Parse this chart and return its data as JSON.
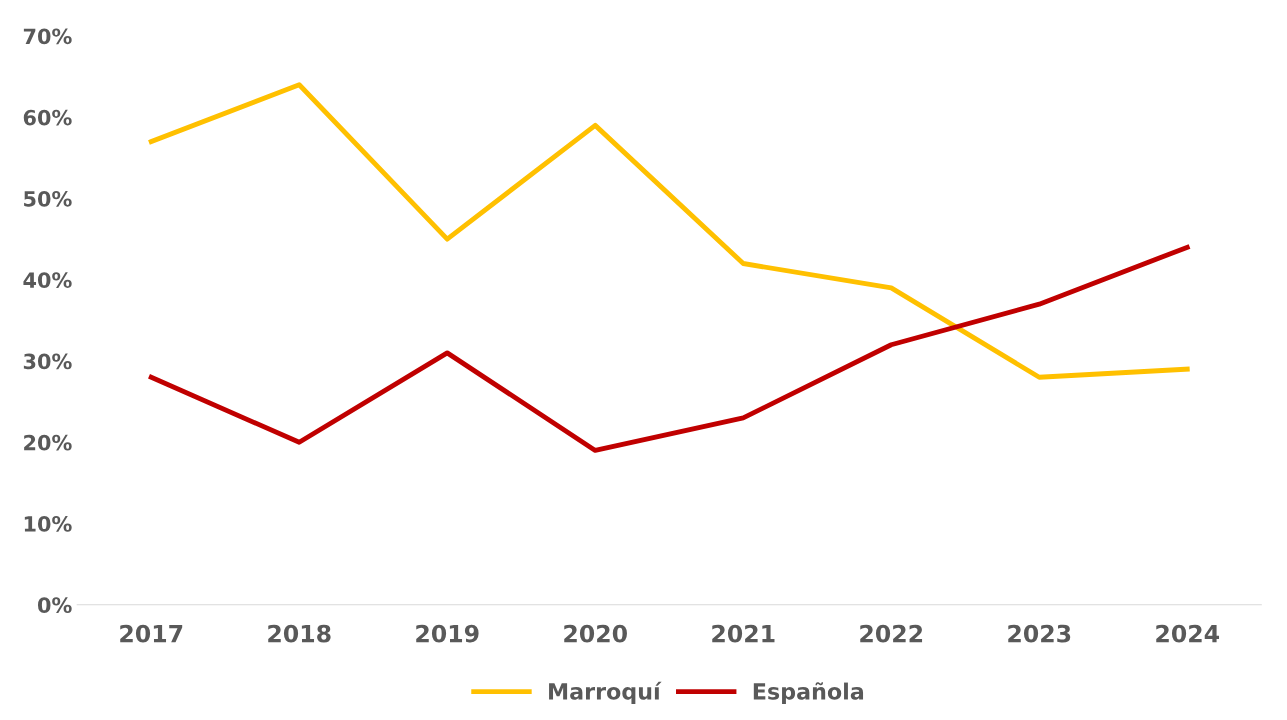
{
  "chart_data": {
    "type": "line",
    "categories": [
      "2017",
      "2018",
      "2019",
      "2020",
      "2021",
      "2022",
      "2023",
      "2024"
    ],
    "series": [
      {
        "name": "Marroquí",
        "color": "#ffc000",
        "values": [
          57,
          64,
          45,
          59,
          42,
          39,
          28,
          29
        ]
      },
      {
        "name": "Española",
        "color": "#c00000",
        "values": [
          28,
          20,
          31,
          19,
          23,
          32,
          37,
          44
        ]
      }
    ],
    "ylim": [
      0,
      70
    ],
    "yticks": [
      {
        "value": 0,
        "label": "0%"
      },
      {
        "value": 10,
        "label": "10%"
      },
      {
        "value": 20,
        "label": "20%"
      },
      {
        "value": 30,
        "label": "30%"
      },
      {
        "value": 40,
        "label": "40%"
      },
      {
        "value": 50,
        "label": "50%"
      },
      {
        "value": 60,
        "label": "60%"
      },
      {
        "value": 70,
        "label": "70%"
      }
    ],
    "grid": false,
    "legend": "bottom",
    "marker": "none",
    "line_style": "solid"
  }
}
